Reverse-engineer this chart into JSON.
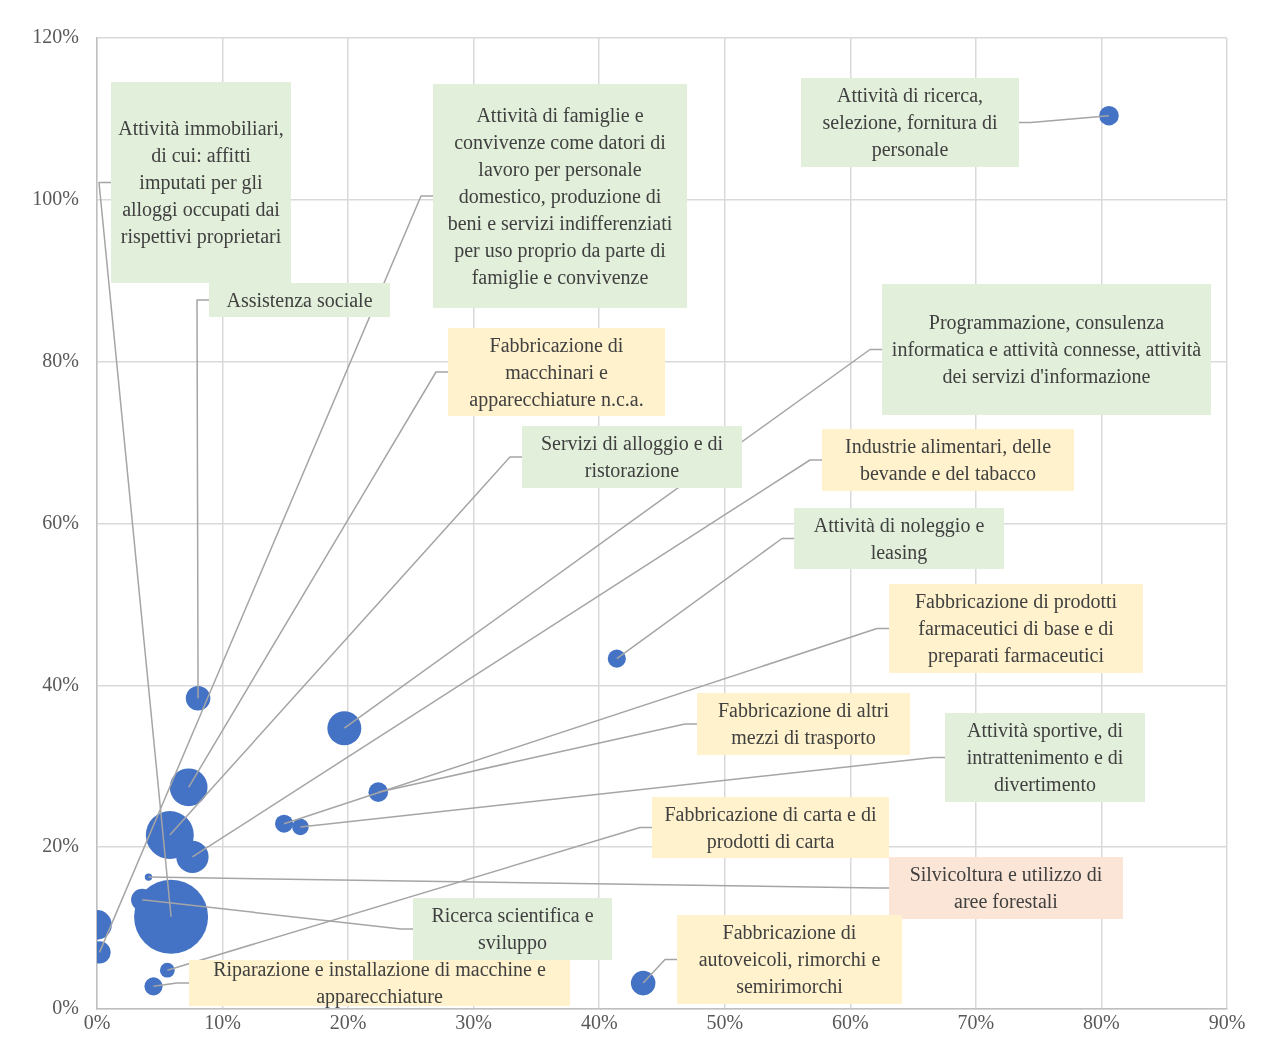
{
  "chart_data": {
    "type": "bubble",
    "series": [
      {
        "color": "#4472c4",
        "x": [
          80.6,
          5.9,
          8.05,
          0.2,
          7.3,
          5.8,
          19.7,
          7.6,
          41.4,
          14.9,
          22.4,
          16.2,
          5.6,
          4.1,
          3.6,
          4.5,
          43.5,
          0
        ],
        "values": [
          110.4,
          11.4,
          38.4,
          7.0,
          27.4,
          21.5,
          34.7,
          18.8,
          43.3,
          22.9,
          26.8,
          22.5,
          4.8,
          16.3,
          13.5,
          2.8,
          3.2,
          10.4
        ],
        "sizes": [
          0.07,
          1,
          0.11,
          0.09,
          0.26,
          0.42,
          0.21,
          0.19,
          0.06,
          0.06,
          0.07,
          0.05,
          0.04,
          0.01,
          0.09,
          0.06,
          0.11,
          0.16
        ]
      }
    ],
    "xlim": [
      0,
      90
    ],
    "xticks": [
      {
        "value": 0,
        "label": "0%"
      },
      {
        "value": 10,
        "label": "10%"
      },
      {
        "value": 20,
        "label": "20%"
      },
      {
        "value": 30,
        "label": "30%"
      },
      {
        "value": 40,
        "label": "40%"
      },
      {
        "value": 50,
        "label": "50%"
      },
      {
        "value": 60,
        "label": "60%"
      },
      {
        "value": 70,
        "label": "70%"
      },
      {
        "value": 80,
        "label": "80%"
      },
      {
        "value": 90,
        "label": "90%"
      }
    ],
    "ylim": [
      0,
      120
    ],
    "yticks": [
      {
        "value": 0,
        "label": "0%"
      },
      {
        "value": 20,
        "label": "20%"
      },
      {
        "value": 40,
        "label": "40%"
      },
      {
        "value": 60,
        "label": "60%"
      },
      {
        "value": 80,
        "label": "80%"
      },
      {
        "value": 100,
        "label": "100%"
      },
      {
        "value": 120,
        "label": "120%"
      }
    ],
    "grid": true,
    "legend": false,
    "annotations": [
      {
        "text": "Attività di ricerca, selezione, fornitura di personale",
        "x": 80.6,
        "y": 110.4
      },
      {
        "text": "Attività immobiliari, di cui: affitti imputati per gli alloggi occupati dai rispettivi proprietari",
        "x": 5.9,
        "y": 11.4
      },
      {
        "text": "Assistenza sociale",
        "x": 8.05,
        "y": 38.4
      },
      {
        "text": "Attività di famiglie e convivenze come datori di lavoro per personale domestico, produzione di beni e servizi indifferenziati per uso proprio da parte di famiglie e convivenze",
        "x": 0.2,
        "y": 7.0
      },
      {
        "text": "Fabbricazione di macchinari e apparecchiature n.c.a.",
        "x": 7.3,
        "y": 27.4
      },
      {
        "text": "Servizi di alloggio e di ristorazione",
        "x": 5.8,
        "y": 21.5
      },
      {
        "text": "Programmazione, consulenza informatica e attività connesse, attività dei servizi d'informazione",
        "x": 19.7,
        "y": 34.7
      },
      {
        "text": "Industrie alimentari, delle bevande e del tabacco",
        "x": 7.6,
        "y": 18.8
      },
      {
        "text": "Attività di noleggio e leasing",
        "x": 41.4,
        "y": 43.3
      },
      {
        "text": "Fabbricazione di prodotti farmaceutici di base e di preparati farmaceutici",
        "x": 14.9,
        "y": 22.9
      },
      {
        "text": "Fabbricazione di altri mezzi di trasporto",
        "x": 22.4,
        "y": 26.8
      },
      {
        "text": "Attività sportive, di intrattenimento e di divertimento",
        "x": 16.2,
        "y": 22.5
      },
      {
        "text": "Fabbricazione di carta e di prodotti di carta",
        "x": 5.6,
        "y": 4.8
      },
      {
        "text": "Silvicoltura e utilizzo di aree forestali",
        "x": 4.1,
        "y": 16.3
      },
      {
        "text": "Ricerca scientifica e sviluppo",
        "x": 3.6,
        "y": 13.5
      },
      {
        "text": "Riparazione e installazione di macchine e apparecchiature",
        "x": 4.5,
        "y": 2.8
      },
      {
        "text": "Fabbricazione di autoveicoli, rimorchi e semirimorchi",
        "x": 43.5,
        "y": 3.2
      }
    ]
  }
}
